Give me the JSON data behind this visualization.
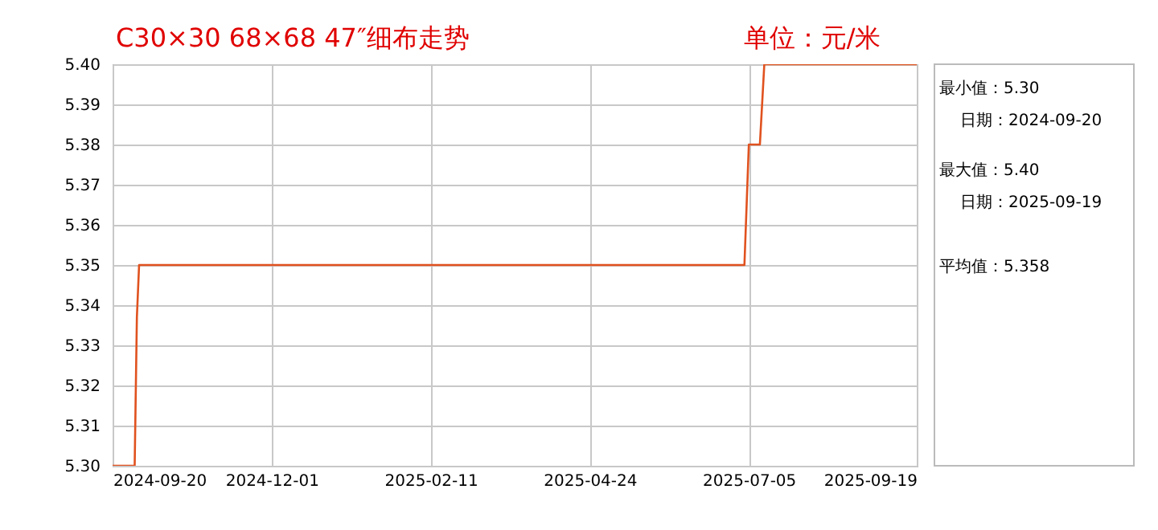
{
  "chart_data": [
    {
      "type": "line",
      "title": "C30×30 68×68 47″细布走势",
      "subtitle": "单位：元/米",
      "x": [
        "2024-09-20",
        "2024-09-30",
        "2024-10-01",
        "2024-10-02",
        "2025-07-03",
        "2025-07-05",
        "2025-07-10",
        "2025-07-12",
        "2025-09-19"
      ],
      "series": [
        {
          "color": "#e0521f",
          "values": [
            5.3,
            5.3,
            5.337,
            5.35,
            5.35,
            5.38,
            5.38,
            5.4,
            5.4
          ]
        }
      ],
      "xlim": [
        "2024-09-20",
        "2025-09-19"
      ],
      "xticks": [
        "2024-09-20",
        "2024-12-01",
        "2025-02-11",
        "2025-04-24",
        "2025-07-05",
        "2025-09-19"
      ],
      "ylim": [
        5.3,
        5.4
      ],
      "yticks": [
        {
          "value": 5.3,
          "label": "5.30"
        },
        {
          "value": 5.31,
          "label": "5.31"
        },
        {
          "value": 5.32,
          "label": "5.32"
        },
        {
          "value": 5.33,
          "label": "5.33"
        },
        {
          "value": 5.34,
          "label": "5.34"
        },
        {
          "value": 5.35,
          "label": "5.35"
        },
        {
          "value": 5.36,
          "label": "5.36"
        },
        {
          "value": 5.37,
          "label": "5.37"
        },
        {
          "value": 5.38,
          "label": "5.38"
        },
        {
          "value": 5.39,
          "label": "5.39"
        },
        {
          "value": 5.4,
          "label": "5.40"
        }
      ],
      "grid": true,
      "marker": "none",
      "line_style": "solid",
      "legend": false
    },
    {
      "type": "other",
      "annotations": [
        "最小值：5.30",
        "日期：2024-09-20",
        "最大值：5.40",
        "日期：2025-09-19",
        "平均值：5.358"
      ]
    }
  ]
}
